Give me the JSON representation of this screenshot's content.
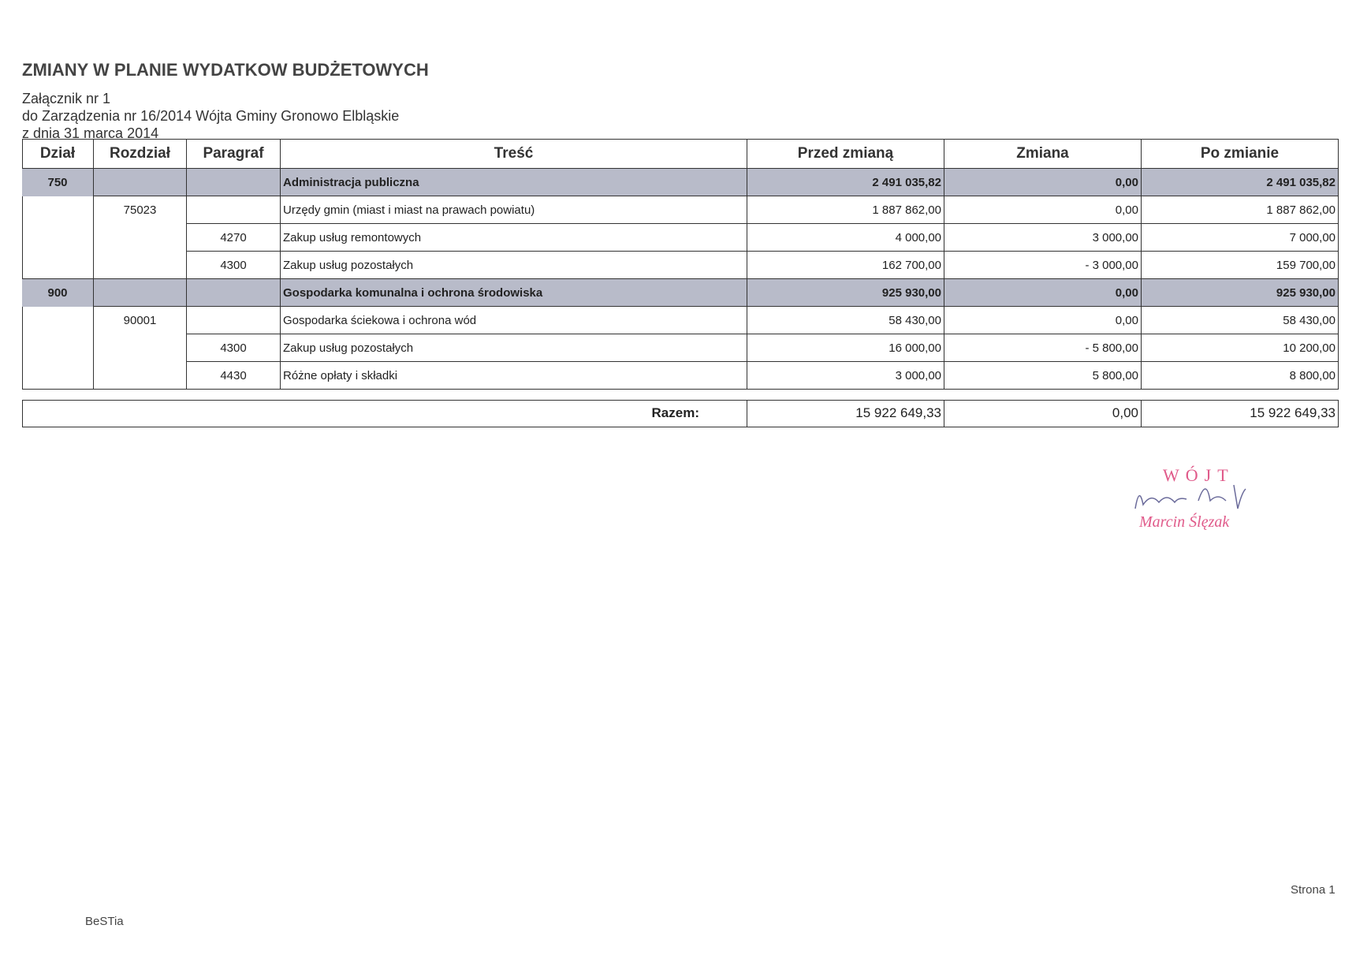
{
  "header": {
    "title": "ZMIANY W PLANIE WYDATKOW BUDŻETOWYCH",
    "lines": [
      "Załącznik nr 1",
      "do Zarządzenia nr 16/2014 Wójta Gminy Gronowo Elbląskie",
      "z dnia 31 marca 2014"
    ]
  },
  "table": {
    "columns": {
      "dzial": "Dział",
      "rozdzial": "Rozdział",
      "paragraf": "Paragraf",
      "tresc": "Treść",
      "przed": "Przed zmianą",
      "zmiana": "Zmiana",
      "po": "Po zmianie"
    },
    "rows": [
      {
        "section": true,
        "dzial": "750",
        "tresc": "Administracja publiczna",
        "przed": "2 491 035,82",
        "zmiana": "0,00",
        "po": "2 491 035,82"
      },
      {
        "section": false,
        "rozdzial": "75023",
        "tresc": "Urzędy gmin (miast i miast na prawach powiatu)",
        "przed": "1 887 862,00",
        "zmiana": "0,00",
        "po": "1 887 862,00"
      },
      {
        "section": false,
        "paragraf": "4270",
        "tresc": "Zakup usług remontowych",
        "przed": "4 000,00",
        "zmiana": "3 000,00",
        "po": "7 000,00"
      },
      {
        "section": false,
        "paragraf": "4300",
        "tresc": "Zakup usług pozostałych",
        "przed": "162 700,00",
        "zmiana": "- 3 000,00",
        "po": "159 700,00"
      },
      {
        "section": true,
        "dzial": "900",
        "tresc": "Gospodarka komunalna i ochrona środowiska",
        "przed": "925 930,00",
        "zmiana": "0,00",
        "po": "925 930,00"
      },
      {
        "section": false,
        "rozdzial": "90001",
        "tresc": "Gospodarka ściekowa i ochrona wód",
        "przed": "58 430,00",
        "zmiana": "0,00",
        "po": "58 430,00"
      },
      {
        "section": false,
        "paragraf": "4300",
        "tresc": "Zakup usług pozostałych",
        "przed": "16 000,00",
        "zmiana": "- 5 800,00",
        "po": "10 200,00"
      },
      {
        "section": false,
        "paragraf": "4430",
        "tresc": "Różne opłaty i składki",
        "przed": "3 000,00",
        "zmiana": "5 800,00",
        "po": "8 800,00"
      }
    ],
    "total": {
      "label": "Razem:",
      "przed": "15 922 649,33",
      "zmiana": "0,00",
      "po": "15 922 649,33"
    }
  },
  "stamp": {
    "title": "WÓJT",
    "name": "Marcin Ślęzak"
  },
  "footer": {
    "page": "Strona 1",
    "software": "BeSTia"
  }
}
